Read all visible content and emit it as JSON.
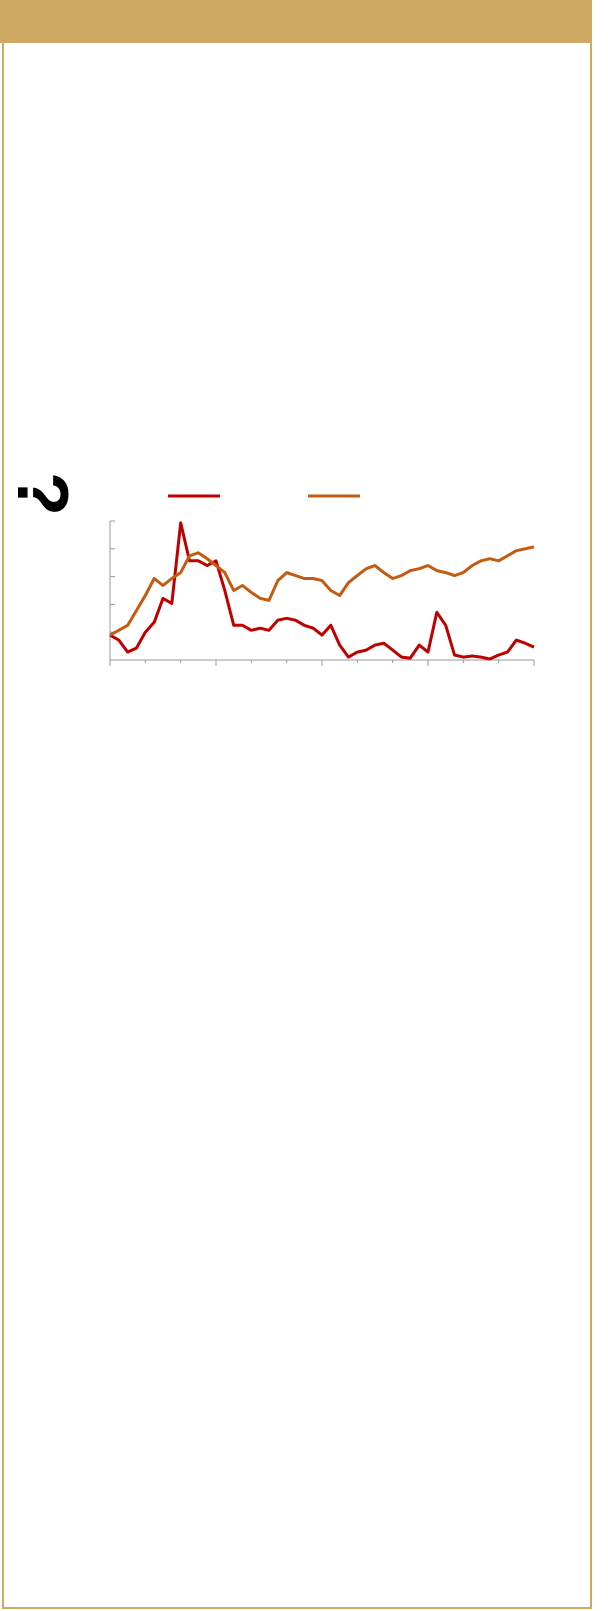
{
  "side_text": "?",
  "chart_data": {
    "type": "line",
    "x": [
      0,
      0.25,
      0.5,
      0.75,
      1,
      1.25,
      1.5,
      1.75,
      2,
      2.25,
      2.5,
      2.75,
      3,
      3.25,
      3.5,
      3.75,
      4,
      4.25,
      4.5,
      4.75,
      5,
      5.25,
      5.5,
      5.75,
      6,
      6.25,
      6.5,
      6.75,
      7,
      7.25,
      7.5,
      7.75,
      8,
      8.25,
      8.5,
      8.75,
      9,
      9.25,
      9.5,
      9.75,
      10,
      10.25,
      10.5,
      10.75,
      11,
      11.25,
      11.5,
      11.75,
      12
    ],
    "series": [
      {
        "color": "#c00000",
        "values": [
          17.9,
          14.3,
          5.7,
          8.6,
          20,
          27.1,
          44.3,
          40.7,
          98.6,
          71.4,
          71.4,
          67.9,
          71.4,
          50,
          25,
          25,
          21.4,
          22.9,
          21.4,
          28.6,
          30,
          28.6,
          25,
          22.9,
          17.9,
          25,
          10.7,
          2.1,
          5.7,
          7.1,
          10.7,
          12.1,
          7.1,
          2.1,
          1.4,
          10.7,
          5.7,
          34.3,
          25,
          3.6,
          2.1,
          2.9,
          2.1,
          0.7,
          3.6,
          5.7,
          14.3,
          12.1,
          9.3
        ]
      },
      {
        "color": "#c55a11",
        "values": [
          17.9,
          21.4,
          25,
          35.7,
          46.4,
          58.6,
          53.6,
          58.6,
          62.9,
          75,
          77.1,
          72.9,
          67.9,
          62.9,
          50,
          53.6,
          48.6,
          44.3,
          42.9,
          57.1,
          62.9,
          60.7,
          58.6,
          58.6,
          57.1,
          50,
          46.4,
          55.7,
          60.7,
          65.7,
          67.9,
          62.9,
          58.6,
          60.7,
          64.3,
          65.7,
          67.9,
          64.3,
          62.9,
          60.7,
          62.9,
          67.9,
          71.4,
          72.9,
          71.4,
          75,
          78.6,
          80,
          81.4
        ]
      }
    ],
    "xlim": [
      0,
      12
    ],
    "xticks": [
      0,
      1,
      2,
      3,
      4,
      5,
      6,
      7,
      8,
      9,
      10,
      11,
      12
    ],
    "ylim": [
      0,
      100
    ],
    "yticks": [
      0,
      20,
      40,
      60,
      80,
      100
    ]
  }
}
